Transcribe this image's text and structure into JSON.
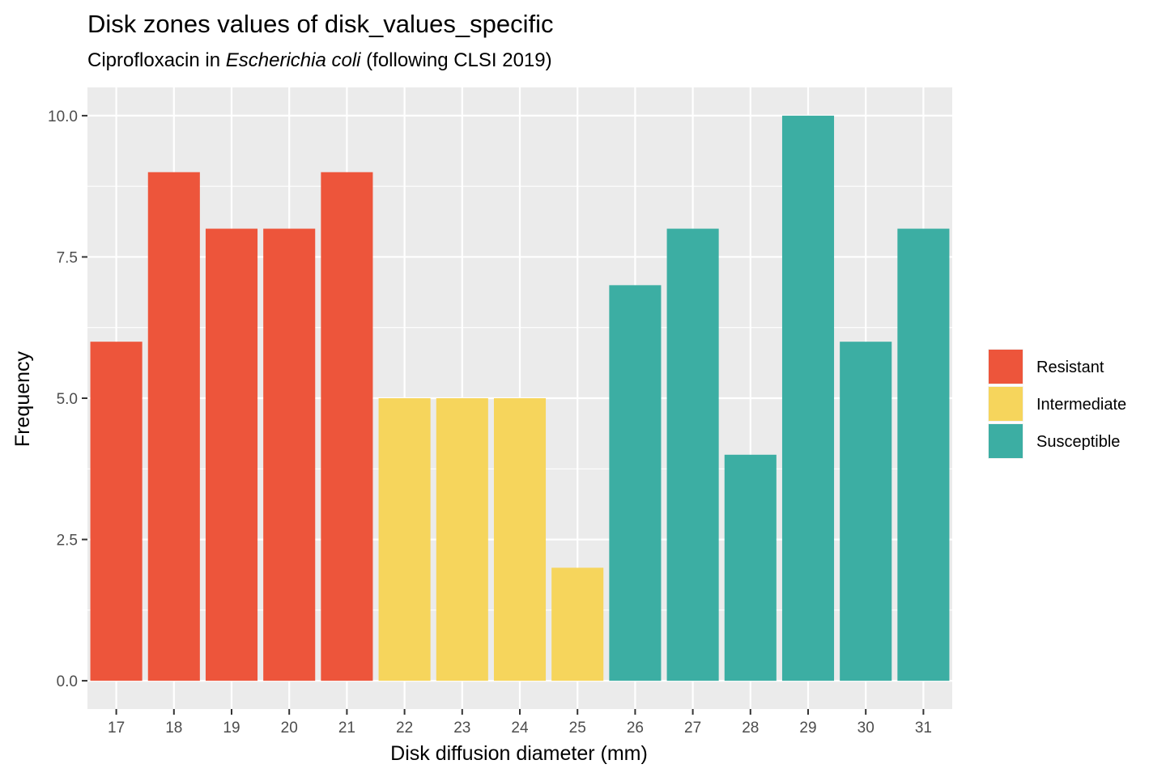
{
  "chart_data": {
    "type": "bar",
    "title": "Disk zones values of disk_values_specific",
    "subtitle": {
      "prefix": "Ciprofloxacin in ",
      "italic": "Escherichia coli",
      "suffix": " (following CLSI 2019)"
    },
    "xlabel": "Disk diffusion diameter (mm)",
    "ylabel": "Frequency",
    "categories": [
      "17",
      "18",
      "19",
      "20",
      "21",
      "22",
      "23",
      "24",
      "25",
      "26",
      "27",
      "28",
      "29",
      "30",
      "31"
    ],
    "values": [
      6,
      9,
      8,
      8,
      9,
      5,
      5,
      5,
      2,
      7,
      8,
      4,
      10,
      6,
      8
    ],
    "interpretation": [
      "Resistant",
      "Resistant",
      "Resistant",
      "Resistant",
      "Resistant",
      "Intermediate",
      "Intermediate",
      "Intermediate",
      "Intermediate",
      "Susceptible",
      "Susceptible",
      "Susceptible",
      "Susceptible",
      "Susceptible",
      "Susceptible"
    ],
    "ylim": [
      -0.5,
      10.5
    ],
    "yticks": [
      0,
      2.5,
      5,
      7.5,
      10
    ],
    "ytick_labels": [
      "0.0",
      "2.5",
      "5.0",
      "7.5",
      "10.0"
    ],
    "grid": true,
    "legend": {
      "position": "right",
      "entries": [
        {
          "name": "Resistant",
          "color": "#ED553B"
        },
        {
          "name": "Intermediate",
          "color": "#F6D55C"
        },
        {
          "name": "Susceptible",
          "color": "#3CAEA3"
        }
      ]
    },
    "colors": {
      "panel_background": "#EBEBEB",
      "grid": "#FFFFFF"
    }
  }
}
